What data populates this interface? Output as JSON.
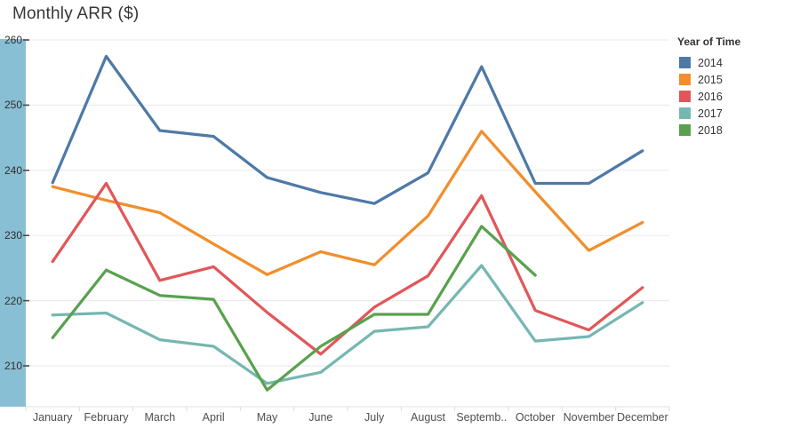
{
  "title": "Monthly ARR ($)",
  "legend": {
    "title": "Year of Time"
  },
  "colors": {
    "y_axis_highlight": "#88bfd4",
    "gridline": "#e9e9e9",
    "axis_line": "#e0e0e0",
    "x_boundary_tick": "#dcdcdc",
    "y_tick_mark": "#4a4a4a"
  },
  "chart_data": {
    "type": "line",
    "title": "Monthly ARR ($)",
    "legend_title": "Year of Time",
    "legend_position": "right",
    "grid": "horizontal",
    "x_tick_labels": [
      "January",
      "February",
      "March",
      "April",
      "May",
      "June",
      "July",
      "August",
      "Septemb..",
      "October",
      "November",
      "December"
    ],
    "x_categories_full": [
      "January",
      "February",
      "March",
      "April",
      "May",
      "June",
      "July",
      "August",
      "September",
      "October",
      "November",
      "December"
    ],
    "y_ticks": [
      210,
      220,
      230,
      240,
      250,
      260
    ],
    "ylim": [
      203.5,
      260.3
    ],
    "ylabel": "",
    "xlabel": "",
    "series": [
      {
        "name": "2014",
        "color": "#4e79a7",
        "values": [
          238.1,
          257.5,
          246.1,
          245.2,
          238.9,
          236.6,
          234.9,
          239.6,
          255.9,
          238.0,
          238.0,
          243.0
        ]
      },
      {
        "name": "2015",
        "color": "#f28e2b",
        "values": [
          237.5,
          235.4,
          233.5,
          228.7,
          224.0,
          227.5,
          225.5,
          233.0,
          246.0,
          236.7,
          227.7,
          232.0
        ]
      },
      {
        "name": "2016",
        "color": "#e15759",
        "values": [
          226.0,
          238.0,
          223.1,
          225.2,
          218.2,
          211.8,
          219.0,
          223.8,
          236.1,
          218.5,
          215.5,
          222.0
        ]
      },
      {
        "name": "2017",
        "color": "#76b7b2",
        "values": [
          217.8,
          218.1,
          214.0,
          213.0,
          207.3,
          209.0,
          215.3,
          216.0,
          225.4,
          213.8,
          214.5,
          219.7
        ]
      },
      {
        "name": "2018",
        "color": "#59a14f",
        "values": [
          214.3,
          224.7,
          220.8,
          220.2,
          206.3,
          213.0,
          217.9,
          217.9,
          231.4,
          223.9,
          null,
          null
        ]
      }
    ]
  }
}
